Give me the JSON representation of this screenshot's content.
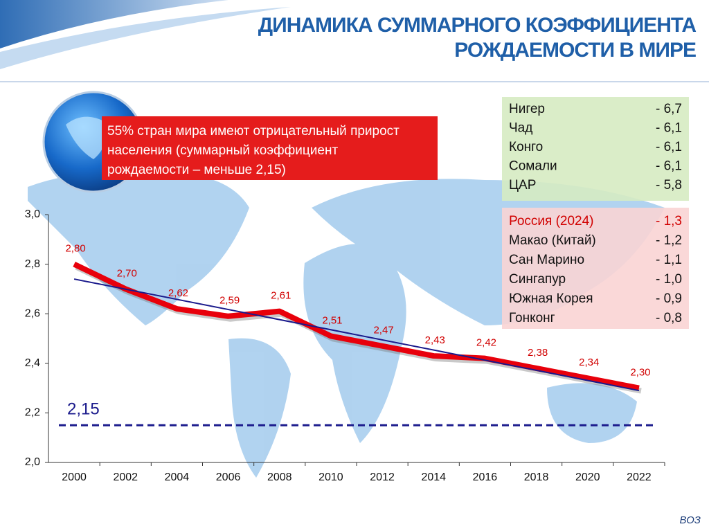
{
  "header": {
    "title_lines": [
      "ДИНАМИКА СУММАРНОГО КОЭФФИЦИЕНТА",
      "РОЖДАЕМОСТИ В МИРЕ"
    ]
  },
  "callout": {
    "lines": [
      "55% стран мира имеют отрицательный прирост",
      "населения (суммарный коэффициент",
      "рождаемости – меньше 2,15)"
    ]
  },
  "high_table": {
    "rows": [
      [
        "Нигер",
        "- 6,7"
      ],
      [
        "Чад",
        "- 6,1"
      ],
      [
        "Конго",
        "- 6,1"
      ],
      [
        "Сомали",
        "- 6,1"
      ],
      [
        "ЦАР",
        "- 5,8"
      ]
    ]
  },
  "low_table": {
    "rows": [
      [
        "Россия (2024)",
        "- 1,3"
      ],
      [
        "Макао (Китай)",
        "- 1,2"
      ],
      [
        "Сан Марино",
        "- 1,1"
      ],
      [
        "Сингапур",
        "- 1,0"
      ],
      [
        "Южная Корея",
        "- 0,9"
      ],
      [
        "Гонконг",
        "- 0,8"
      ]
    ]
  },
  "source": "ВОЗ",
  "chart_data": {
    "type": "line",
    "categories": [
      "2000",
      "2002",
      "2004",
      "2006",
      "2008",
      "2010",
      "2012",
      "2014",
      "2016",
      "2018",
      "2020",
      "2022"
    ],
    "values": [
      2.8,
      2.7,
      2.62,
      2.59,
      2.61,
      2.51,
      2.47,
      2.43,
      2.42,
      2.38,
      2.34,
      2.3
    ],
    "value_labels": [
      "2,80",
      "2,70",
      "2,62",
      "2,59",
      "2,61",
      "2,51",
      "2,47",
      "2,43",
      "2,42",
      "2,38",
      "2,34",
      "2,30"
    ],
    "color": "#e8000b",
    "ylim": [
      2.0,
      3.0
    ],
    "yticks": [
      {
        "value": 2.0,
        "label": "2,0"
      },
      {
        "value": 2.2,
        "label": "2,2"
      },
      {
        "value": 2.4,
        "label": "2,4"
      },
      {
        "value": 2.6,
        "label": "2,6"
      },
      {
        "value": 2.8,
        "label": "2,8"
      },
      {
        "value": 3.0,
        "label": "3,0"
      }
    ],
    "trend": {
      "from": 2.74,
      "to": 2.29,
      "color": "#1a1a8c"
    },
    "reference_line": {
      "value": 2.15,
      "label": "2,15",
      "color": "#1a1a8c"
    }
  }
}
